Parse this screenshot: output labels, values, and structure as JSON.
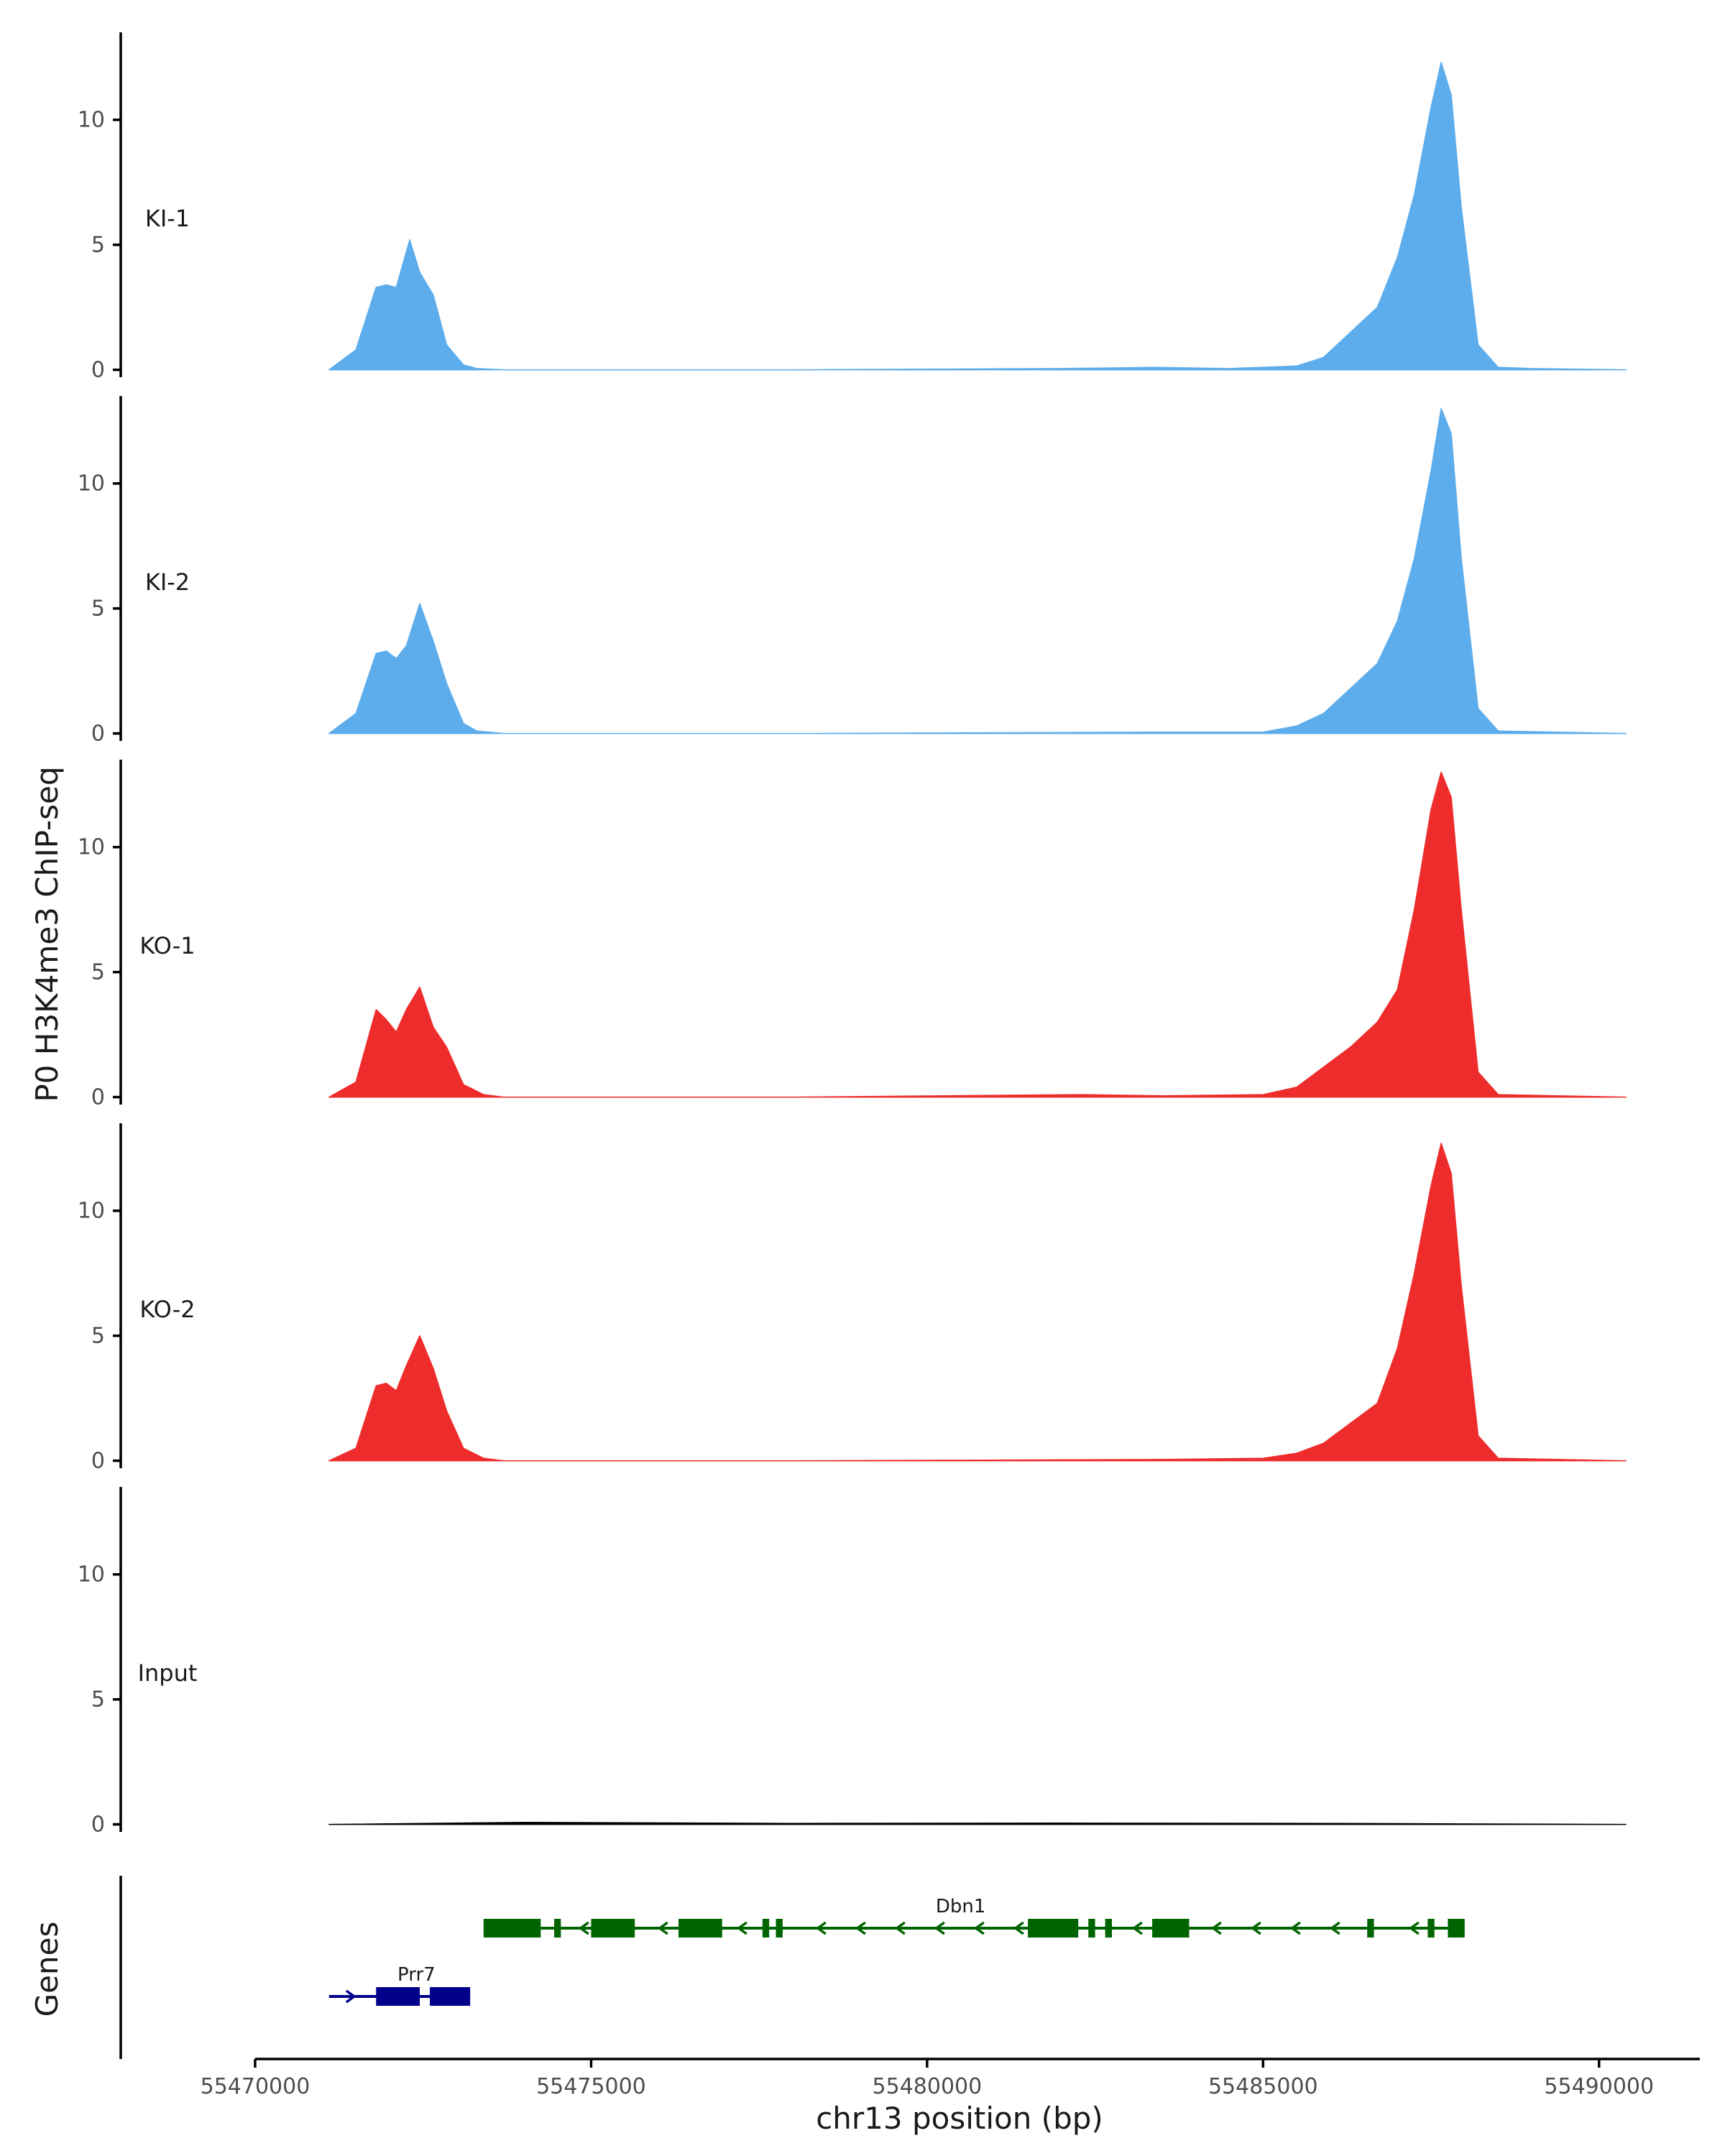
{
  "chart_data": {
    "type": "area",
    "y_axis_title": "P0 H3K4me3 ChIP-seq",
    "x_axis_title": "chr13 position (bp)",
    "xlim": [
      55468000,
      55491500
    ],
    "ylim": [
      -0.3,
      13.5
    ],
    "x_ticks": [
      {
        "value": 55470000,
        "label": "55470000"
      },
      {
        "value": 55475000,
        "label": "55475000"
      },
      {
        "value": 55480000,
        "label": "55480000"
      },
      {
        "value": 55485000,
        "label": "55485000"
      },
      {
        "value": 55490000,
        "label": "55490000"
      }
    ],
    "y_ticks": [
      {
        "value": 0,
        "label": "0"
      },
      {
        "value": 5,
        "label": "5"
      },
      {
        "value": 10,
        "label": "10"
      }
    ],
    "tracks": [
      {
        "name": "KI-1",
        "color": "#5DADEC",
        "x": [
          55471100,
          55471500,
          55471800,
          55471950,
          55472100,
          55472300,
          55472450,
          55472650,
          55472850,
          55473100,
          55473300,
          55473700,
          55474500,
          55478000,
          55482000,
          55483400,
          55484500,
          55485500,
          55485900,
          55486300,
          55486700,
          55487000,
          55487250,
          55487500,
          55487650,
          55487800,
          55487950,
          55488200,
          55488500,
          55489000,
          55490400
        ],
        "values": [
          0,
          0.8,
          3.3,
          3.4,
          3.3,
          5.2,
          3.9,
          3.0,
          1.0,
          0.2,
          0.05,
          0,
          0,
          0,
          0.05,
          0.1,
          0.05,
          0.15,
          0.5,
          1.5,
          2.5,
          4.5,
          7.0,
          10.5,
          12.3,
          11.0,
          6.5,
          1.0,
          0.1,
          0.05,
          0
        ]
      },
      {
        "name": "KI-2",
        "color": "#5DADEC",
        "x": [
          55471100,
          55471500,
          55471800,
          55471950,
          55472100,
          55472250,
          55472450,
          55472650,
          55472850,
          55473100,
          55473300,
          55473700,
          55478000,
          55483400,
          55485000,
          55485500,
          55485900,
          55486300,
          55486700,
          55487000,
          55487250,
          55487500,
          55487650,
          55487800,
          55487950,
          55488200,
          55488500,
          55490400
        ],
        "values": [
          0,
          0.8,
          3.2,
          3.3,
          3.0,
          3.5,
          5.2,
          3.7,
          2.0,
          0.4,
          0.1,
          0,
          0,
          0.05,
          0.05,
          0.3,
          0.8,
          1.8,
          2.8,
          4.5,
          7.0,
          10.5,
          13.0,
          12.0,
          7.0,
          1.0,
          0.1,
          0
        ]
      },
      {
        "name": "KO-1",
        "color": "#EE2C2C",
        "x": [
          55471100,
          55471500,
          55471800,
          55471950,
          55472100,
          55472250,
          55472450,
          55472650,
          55472850,
          55473100,
          55473400,
          55473700,
          55478000,
          55482300,
          55483500,
          55485000,
          55485500,
          55485900,
          55486300,
          55486700,
          55487000,
          55487250,
          55487500,
          55487650,
          55487800,
          55487950,
          55488200,
          55488500,
          55490400
        ],
        "values": [
          0,
          0.6,
          3.5,
          3.1,
          2.6,
          3.5,
          4.4,
          2.8,
          2.0,
          0.5,
          0.1,
          0,
          0,
          0.1,
          0.05,
          0.1,
          0.4,
          1.2,
          2.0,
          3.0,
          4.3,
          7.5,
          11.5,
          13.0,
          12.0,
          7.5,
          1.0,
          0.1,
          0
        ]
      },
      {
        "name": "KO-2",
        "color": "#EE2C2C",
        "x": [
          55471100,
          55471500,
          55471800,
          55471950,
          55472100,
          55472250,
          55472450,
          55472650,
          55472850,
          55473100,
          55473400,
          55473700,
          55478000,
          55483500,
          55485000,
          55485500,
          55485900,
          55486300,
          55486700,
          55487000,
          55487250,
          55487500,
          55487650,
          55487800,
          55487950,
          55488200,
          55488500,
          55490400
        ],
        "values": [
          0,
          0.5,
          3.0,
          3.1,
          2.8,
          3.8,
          5.0,
          3.7,
          2.0,
          0.5,
          0.1,
          0,
          0,
          0.05,
          0.1,
          0.3,
          0.7,
          1.5,
          2.3,
          4.5,
          7.5,
          11.0,
          12.7,
          11.5,
          7.0,
          1.0,
          0.1,
          0
        ]
      },
      {
        "name": "Input",
        "color": "#000000",
        "x": [
          55471100,
          55474000,
          55478000,
          55482000,
          55486000,
          55490400
        ],
        "values": [
          0,
          0.08,
          0.04,
          0.05,
          0.04,
          0
        ]
      }
    ],
    "genes_panel_title": "Genes",
    "genes": [
      {
        "name": "Prr7",
        "color": "#00008B",
        "strand": "+",
        "row": 2,
        "start": 55471100,
        "end": 55473200,
        "exons": [
          [
            55471800,
            55472450
          ],
          [
            55472600,
            55473200
          ]
        ]
      },
      {
        "name": "Dbn1",
        "color": "#006400",
        "strand": "-",
        "row": 1,
        "start": 55473400,
        "end": 55488000,
        "exons": [
          [
            55473400,
            55474250
          ],
          [
            55474450,
            55474550
          ],
          [
            55475000,
            55475650
          ],
          [
            55476300,
            55476950
          ],
          [
            55477550,
            55477650
          ],
          [
            55477750,
            55477850
          ],
          [
            55481500,
            55482250
          ],
          [
            55482400,
            55482500
          ],
          [
            55482650,
            55482750
          ],
          [
            55483350,
            55483900
          ],
          [
            55486550,
            55486650
          ],
          [
            55487450,
            55487550
          ],
          [
            55487750,
            55488000
          ]
        ]
      }
    ]
  }
}
